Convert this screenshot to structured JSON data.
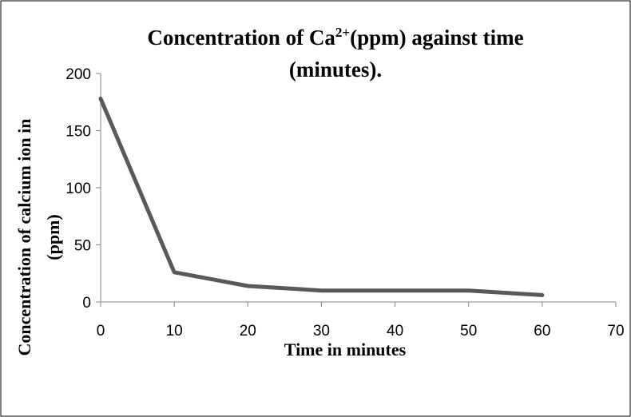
{
  "chart_data": {
    "type": "line",
    "title_parts": [
      "Concentration of Ca",
      "2+",
      "(ppm) against time",
      "(minutes)."
    ],
    "x_label": "Time in minutes",
    "y_label_lines": [
      "Concentration of calcium ion in",
      "(ppm)"
    ],
    "x": [
      0,
      10,
      20,
      30,
      40,
      50,
      60
    ],
    "series": [
      {
        "color": "#595959",
        "values": [
          178,
          26,
          14,
          10,
          10,
          10,
          6
        ]
      }
    ],
    "xlim": [
      0,
      70
    ],
    "xticks": [
      0,
      10,
      20,
      30,
      40,
      50,
      60,
      70
    ],
    "ylim": [
      0,
      200
    ],
    "yticks": [
      0,
      50,
      100,
      150,
      200
    ],
    "grid": false
  }
}
